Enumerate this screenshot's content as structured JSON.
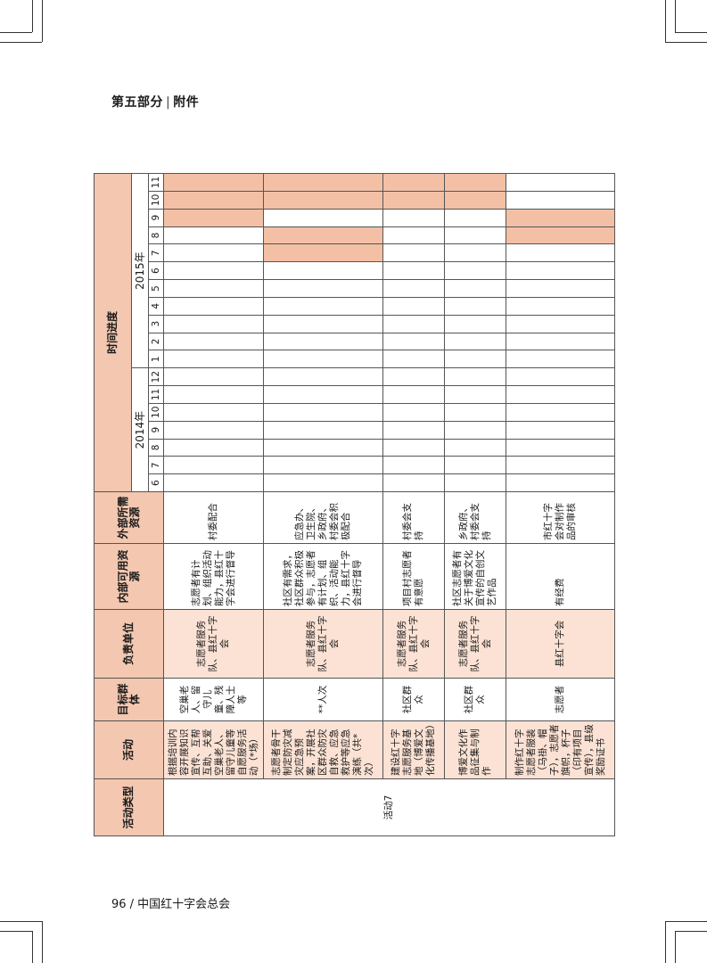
{
  "page": {
    "section": "第五部分",
    "section_sep": "|",
    "section_sub": "附件",
    "footer": "96 / 中国红十字会总会"
  },
  "table": {
    "headers": {
      "type": "活动类型",
      "activity": "活动",
      "target": "目标群体",
      "unit": "负责单位",
      "internal": "内部可用资源",
      "external": "外部所需资源",
      "timeline": "时间进度"
    },
    "years": [
      {
        "label": "2014年",
        "months": [
          "6",
          "7",
          "8",
          "9",
          "10",
          "11",
          "12"
        ]
      },
      {
        "label": "2015年",
        "months": [
          "1",
          "2",
          "3",
          "4",
          "5",
          "6",
          "7",
          "8",
          "9",
          "10",
          "11"
        ]
      }
    ],
    "activity_type": "活动7",
    "rows": [
      {
        "activity": "根据培训内容开展知识宣传、互帮互助、关爱空巢老人、留守儿童等自愿服务活动（*场）",
        "target": "空巢老人、留守儿童、残障人士等",
        "unit": "志愿者服务队、县红十字会",
        "internal": "志愿者有计划、组织活动能力，县红十字会进行督导",
        "external": "村委配合",
        "active_months": [
          15,
          16,
          17
        ]
      },
      {
        "activity": "志愿者骨干制定防灾减灾应急预案，开展社区群众防灾自救、应急救护等应急演练（共*次）",
        "target": "**人次",
        "unit": "志愿者服务队、县红十字会",
        "internal": "社区有需求，社区群众积极参与，志愿者有计划、组织、活动能力，县红十字会进行督导",
        "external": "应急办、卫生院、乡政府、村委会积极配合",
        "active_months": [
          13,
          14,
          16,
          17
        ]
      },
      {
        "activity": "建设红十字志愿服务基地（博爱文化传播基地）",
        "target": "社区群众",
        "unit": "志愿者服务队、县红十字会",
        "internal": "项目村志愿者有意愿",
        "external": "村委会支持",
        "active_months": [
          16,
          17
        ]
      },
      {
        "activity": "博爱文化作品征集与制作",
        "target": "社区群众",
        "unit": "志愿者服务队、县红十字会",
        "internal": "社区志愿者有关于博爱文化宣传的自创文艺作品",
        "external": "乡政府、村委会支持",
        "active_months": [
          16,
          17
        ]
      },
      {
        "activity": "制作红十字志愿者服装（马褂、帽子），志愿者旗帜，杯子（印有项目宣传），县级奖励证书",
        "target": "志愿者",
        "unit": "县红十字会",
        "internal": "有经费",
        "external": "市红十字会对制作品的审核",
        "active_months": [
          14,
          15
        ]
      }
    ]
  }
}
